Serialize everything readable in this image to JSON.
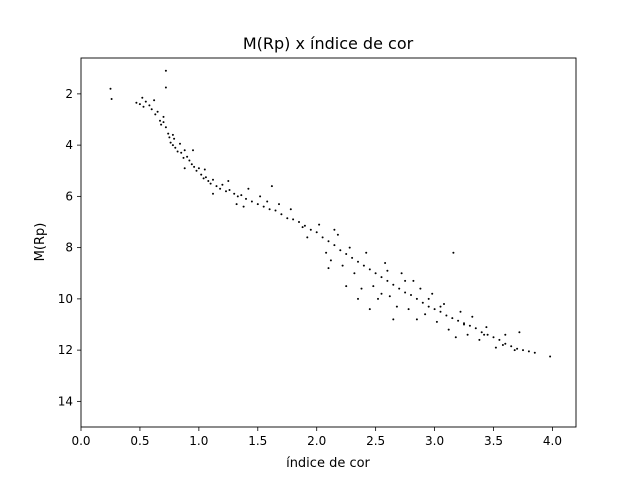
{
  "chart_data": {
    "type": "scatter",
    "title": "M(Rp) x índice de cor",
    "xlabel": "índice de cor",
    "ylabel": "M(Rp)",
    "xlim": [
      0.0,
      4.2
    ],
    "ylim": [
      15.0,
      0.6
    ],
    "y_inverted": true,
    "grid": false,
    "legend": "none",
    "marker_color": "#000000",
    "x_ticks": [
      {
        "value": 0.0,
        "label": "0.0"
      },
      {
        "value": 0.5,
        "label": "0.5"
      },
      {
        "value": 1.0,
        "label": "1.0"
      },
      {
        "value": 1.5,
        "label": "1.5"
      },
      {
        "value": 2.0,
        "label": "2.0"
      },
      {
        "value": 2.5,
        "label": "2.5"
      },
      {
        "value": 3.0,
        "label": "3.0"
      },
      {
        "value": 3.5,
        "label": "3.5"
      },
      {
        "value": 4.0,
        "label": "4.0"
      }
    ],
    "y_ticks": [
      {
        "value": 2,
        "label": "2"
      },
      {
        "value": 4,
        "label": "4"
      },
      {
        "value": 6,
        "label": "6"
      },
      {
        "value": 8,
        "label": "8"
      },
      {
        "value": 10,
        "label": "10"
      },
      {
        "value": 12,
        "label": "12"
      },
      {
        "value": 14,
        "label": "14"
      }
    ],
    "points": [
      [
        0.25,
        1.8
      ],
      [
        0.26,
        2.2
      ],
      [
        0.72,
        1.1
      ],
      [
        0.72,
        1.75
      ],
      [
        0.47,
        2.35
      ],
      [
        0.5,
        2.4
      ],
      [
        0.52,
        2.15
      ],
      [
        0.53,
        2.5
      ],
      [
        0.55,
        2.3
      ],
      [
        0.58,
        2.45
      ],
      [
        0.6,
        2.6
      ],
      [
        0.62,
        2.25
      ],
      [
        0.63,
        2.8
      ],
      [
        0.65,
        2.7
      ],
      [
        0.67,
        3.05
      ],
      [
        0.68,
        3.2
      ],
      [
        0.7,
        2.9
      ],
      [
        0.72,
        3.3
      ],
      [
        0.74,
        3.55
      ],
      [
        0.75,
        3.7
      ],
      [
        0.76,
        3.9
      ],
      [
        0.78,
        4.0
      ],
      [
        0.79,
        3.75
      ],
      [
        0.8,
        4.1
      ],
      [
        0.82,
        4.25
      ],
      [
        0.84,
        3.95
      ],
      [
        0.85,
        4.3
      ],
      [
        0.87,
        4.5
      ],
      [
        0.88,
        4.2
      ],
      [
        0.9,
        4.45
      ],
      [
        0.92,
        4.6
      ],
      [
        0.94,
        4.75
      ],
      [
        0.96,
        4.85
      ],
      [
        0.98,
        5.0
      ],
      [
        1.0,
        4.9
      ],
      [
        1.02,
        5.15
      ],
      [
        1.04,
        5.3
      ],
      [
        1.06,
        5.25
      ],
      [
        1.08,
        5.4
      ],
      [
        1.1,
        5.5
      ],
      [
        1.12,
        5.35
      ],
      [
        1.15,
        5.6
      ],
      [
        1.18,
        5.7
      ],
      [
        1.2,
        5.55
      ],
      [
        1.23,
        5.8
      ],
      [
        1.26,
        5.75
      ],
      [
        1.3,
        5.9
      ],
      [
        1.33,
        6.0
      ],
      [
        1.36,
        5.95
      ],
      [
        1.4,
        6.1
      ],
      [
        1.45,
        6.2
      ],
      [
        1.5,
        6.3
      ],
      [
        1.55,
        6.4
      ],
      [
        1.6,
        6.5
      ],
      [
        1.65,
        6.55
      ],
      [
        1.7,
        6.7
      ],
      [
        1.75,
        6.85
      ],
      [
        1.8,
        6.9
      ],
      [
        1.85,
        7.0
      ],
      [
        1.9,
        7.15
      ],
      [
        1.95,
        7.3
      ],
      [
        2.0,
        7.4
      ],
      [
        2.05,
        7.6
      ],
      [
        2.1,
        7.75
      ],
      [
        2.15,
        7.9
      ],
      [
        2.2,
        8.1
      ],
      [
        2.25,
        8.25
      ],
      [
        2.3,
        8.4
      ],
      [
        2.35,
        8.55
      ],
      [
        2.4,
        8.7
      ],
      [
        2.45,
        8.85
      ],
      [
        2.5,
        9.0
      ],
      [
        2.55,
        9.15
      ],
      [
        2.6,
        9.3
      ],
      [
        2.65,
        9.45
      ],
      [
        2.7,
        9.6
      ],
      [
        2.75,
        9.75
      ],
      [
        2.8,
        9.85
      ],
      [
        2.85,
        10.0
      ],
      [
        2.9,
        10.15
      ],
      [
        2.95,
        10.3
      ],
      [
        3.0,
        10.4
      ],
      [
        3.05,
        10.5
      ],
      [
        3.1,
        10.65
      ],
      [
        3.15,
        10.75
      ],
      [
        3.2,
        10.85
      ],
      [
        3.25,
        10.95
      ],
      [
        3.3,
        11.05
      ],
      [
        3.35,
        11.15
      ],
      [
        3.4,
        11.3
      ],
      [
        3.45,
        11.4
      ],
      [
        3.5,
        11.5
      ],
      [
        3.55,
        11.6
      ],
      [
        3.6,
        11.75
      ],
      [
        3.65,
        11.85
      ],
      [
        3.7,
        11.95
      ],
      [
        3.75,
        12.0
      ],
      [
        3.8,
        12.05
      ],
      [
        3.85,
        12.1
      ],
      [
        3.98,
        12.25
      ],
      [
        0.7,
        3.1
      ],
      [
        0.78,
        3.6
      ],
      [
        0.95,
        4.2
      ],
      [
        1.05,
        4.95
      ],
      [
        1.25,
        5.4
      ],
      [
        1.32,
        6.3
      ],
      [
        1.42,
        5.7
      ],
      [
        1.58,
        6.2
      ],
      [
        1.62,
        5.6
      ],
      [
        1.78,
        6.5
      ],
      [
        1.92,
        7.6
      ],
      [
        2.02,
        7.1
      ],
      [
        2.08,
        8.2
      ],
      [
        2.12,
        8.5
      ],
      [
        2.18,
        7.5
      ],
      [
        2.22,
        8.7
      ],
      [
        2.28,
        8.0
      ],
      [
        2.32,
        9.0
      ],
      [
        2.38,
        9.6
      ],
      [
        2.42,
        8.2
      ],
      [
        2.48,
        9.5
      ],
      [
        2.52,
        10.0
      ],
      [
        2.58,
        8.6
      ],
      [
        2.62,
        9.9
      ],
      [
        2.68,
        10.3
      ],
      [
        2.72,
        9.0
      ],
      [
        2.78,
        10.4
      ],
      [
        2.82,
        9.3
      ],
      [
        2.88,
        9.6
      ],
      [
        2.92,
        10.6
      ],
      [
        2.98,
        9.8
      ],
      [
        3.02,
        10.9
      ],
      [
        3.08,
        10.2
      ],
      [
        3.12,
        11.2
      ],
      [
        3.16,
        8.2
      ],
      [
        3.22,
        10.5
      ],
      [
        3.28,
        11.4
      ],
      [
        3.32,
        10.7
      ],
      [
        3.38,
        11.6
      ],
      [
        3.44,
        11.1
      ],
      [
        3.52,
        11.9
      ],
      [
        3.6,
        11.4
      ],
      [
        3.72,
        11.3
      ],
      [
        2.1,
        8.8
      ],
      [
        2.25,
        9.5
      ],
      [
        2.35,
        10.0
      ],
      [
        2.45,
        10.4
      ],
      [
        2.55,
        9.8
      ],
      [
        2.65,
        10.8
      ],
      [
        2.85,
        10.8
      ],
      [
        3.18,
        11.5
      ],
      [
        1.52,
        6.0
      ],
      [
        1.12,
        5.9
      ],
      [
        0.88,
        4.9
      ],
      [
        1.38,
        6.4
      ],
      [
        1.68,
        6.3
      ],
      [
        1.88,
        7.2
      ],
      [
        2.15,
        7.3
      ],
      [
        2.6,
        8.9
      ],
      [
        2.75,
        9.3
      ],
      [
        2.95,
        10.0
      ],
      [
        3.05,
        10.3
      ],
      [
        3.25,
        11.0
      ],
      [
        3.42,
        11.4
      ],
      [
        3.58,
        11.8
      ],
      [
        3.68,
        12.0
      ]
    ]
  }
}
